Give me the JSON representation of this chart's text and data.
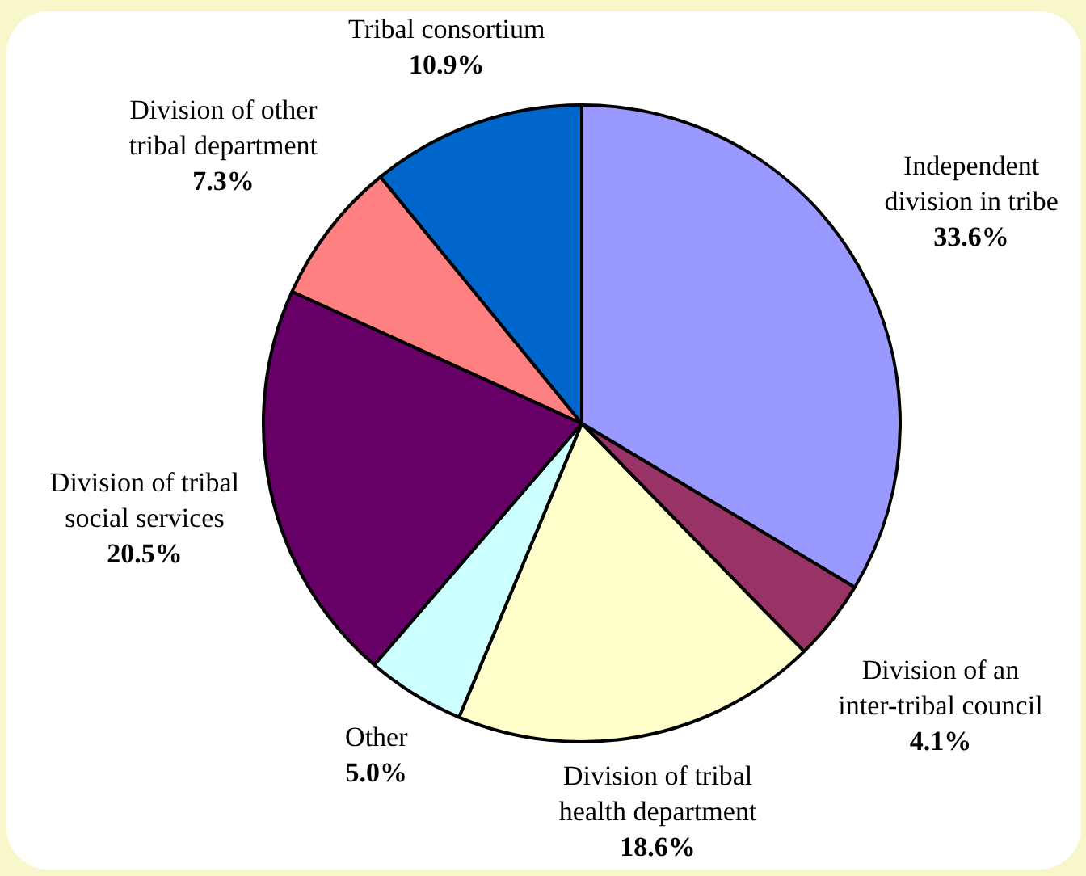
{
  "chart_data": {
    "type": "pie",
    "categories": [
      "Independent division in tribe",
      "Division of an inter-tribal council",
      "Division of tribal health department",
      "Other",
      "Division of tribal social services",
      "Division of other tribal department",
      "Tribal consortium"
    ],
    "values": [
      33.6,
      4.1,
      18.6,
      5.0,
      20.5,
      7.3,
      10.9
    ],
    "colors": [
      "#9999ff",
      "#993366",
      "#ffffcc",
      "#ccffff",
      "#660066",
      "#ff8080",
      "#0066cc"
    ],
    "value_labels": [
      "33.6%",
      "4.1%",
      "18.6%",
      "5.0%",
      "20.5%",
      "7.3%",
      "10.9%"
    ],
    "legend": false
  }
}
